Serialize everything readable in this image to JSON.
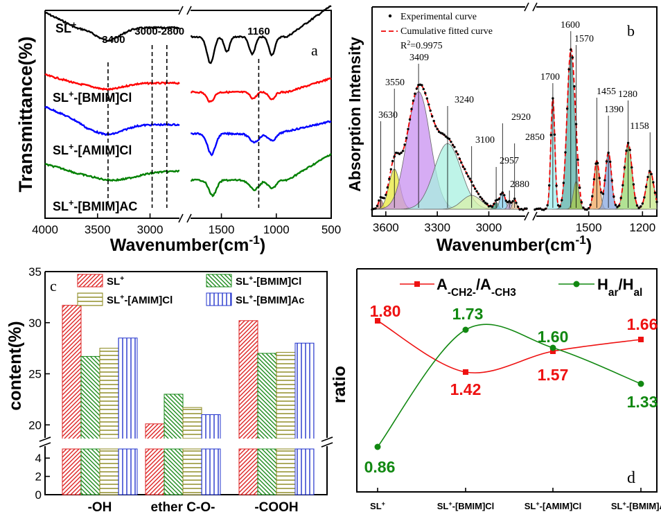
{
  "panel_a": {
    "letter": "a",
    "ylabel": "Transmittance(%)",
    "xlabel": "Wavenumber(cm",
    "xlabel_sup": "-1",
    "xlabel_end": ")",
    "xticks_left": [
      "4000",
      "3500",
      "3000"
    ],
    "xticks_right": [
      "1500",
      "1000",
      "500"
    ],
    "peak_labels": [
      "3400",
      "3000-2800",
      "1160"
    ],
    "series": [
      {
        "name": "SL⁺",
        "color": "#000000"
      },
      {
        "name": "SL⁺-[BMIM]Cl",
        "color": "#ff0000"
      },
      {
        "name": "SL⁺-[AMIM]Cl",
        "color": "#0000ff"
      },
      {
        "name": "SL⁺-[BMIM]AC",
        "color": "#008000"
      }
    ]
  },
  "panel_b": {
    "letter": "b",
    "ylabel": "Absorption Intensity",
    "xlabel": "Wavenumber(cm",
    "xlabel_sup": "-1",
    "xlabel_end": ")",
    "xticks_left": [
      "3600",
      "3300",
      "3000"
    ],
    "xticks_right": [
      "1500",
      "1200"
    ],
    "legend": [
      "Experimental curve",
      "Cumulative fitted curve",
      "R²=0.9975"
    ],
    "peaks": [
      "3630",
      "3550",
      "3409",
      "3240",
      "3100",
      "2957",
      "2920",
      "2880",
      "2850",
      "1700",
      "1600",
      "1570",
      "1455",
      "1390",
      "1280",
      "1158"
    ],
    "fills": [
      "#c87a7a",
      "#e8e83a",
      "#c890f0",
      "#a8f0e0",
      "#d8f0a8",
      "#3a9a7a",
      "#88d0f0",
      "#c8a8d8",
      "#e8c8a0",
      "#a0f0f0",
      "#58b0a8",
      "#a8c848",
      "#f0a860",
      "#88a8e0",
      "#98d870",
      "#c8e888"
    ]
  },
  "panel_c": {
    "letter": "c",
    "ylabel": "content(%)",
    "yticks_top": [
      "35",
      "30",
      "25",
      "20"
    ],
    "yticks_bottom": [
      "4",
      "2",
      "0"
    ],
    "legend": [
      "SL⁺",
      "SL⁺-[BMIM]Cl",
      "SL⁺-[AMIM]Cl",
      "SL⁺-[BMIM]Ac"
    ],
    "chart_data": {
      "type": "bar",
      "categories": [
        "-OH",
        "ether C-O-",
        "-COOH"
      ],
      "series": [
        {
          "name": "SL⁺",
          "values": [
            31.7,
            20.1,
            30.2
          ]
        },
        {
          "name": "SL⁺-[BMIM]Cl",
          "values": [
            26.7,
            23.0,
            27.0
          ]
        },
        {
          "name": "SL⁺-[AMIM]Cl",
          "values": [
            27.5,
            21.7,
            27.1
          ]
        },
        {
          "name": "SL⁺-[BMIM]Ac",
          "values": [
            28.5,
            21.0,
            28.0
          ]
        }
      ],
      "ylim_top": [
        19,
        35
      ],
      "ylim_bottom": [
        0,
        5
      ],
      "ylabel": "content(%)"
    }
  },
  "panel_d": {
    "letter": "d",
    "ylabel": "ratio",
    "legend": [
      "A-CH2-/A-CH3",
      "Har/Hal"
    ],
    "chart_data": {
      "type": "line",
      "categories": [
        "SL⁺",
        "SL⁺-[BMIM]Cl",
        "SL⁺-[AMIM]Cl",
        "SL⁺-[BMIM]Ac"
      ],
      "series": [
        {
          "name": "A-CH2-/A-CH3",
          "values": [
            1.8,
            1.42,
            1.57,
            1.66
          ],
          "labels": [
            "1.80",
            "1.42",
            "1.57",
            "1.66"
          ],
          "color": "#ee1111"
        },
        {
          "name": "Har/Hal",
          "values": [
            0.86,
            1.73,
            1.6,
            1.33
          ],
          "labels": [
            "0.86",
            "1.73",
            "1.60",
            "1.33"
          ],
          "color": "#118811"
        }
      ]
    }
  }
}
